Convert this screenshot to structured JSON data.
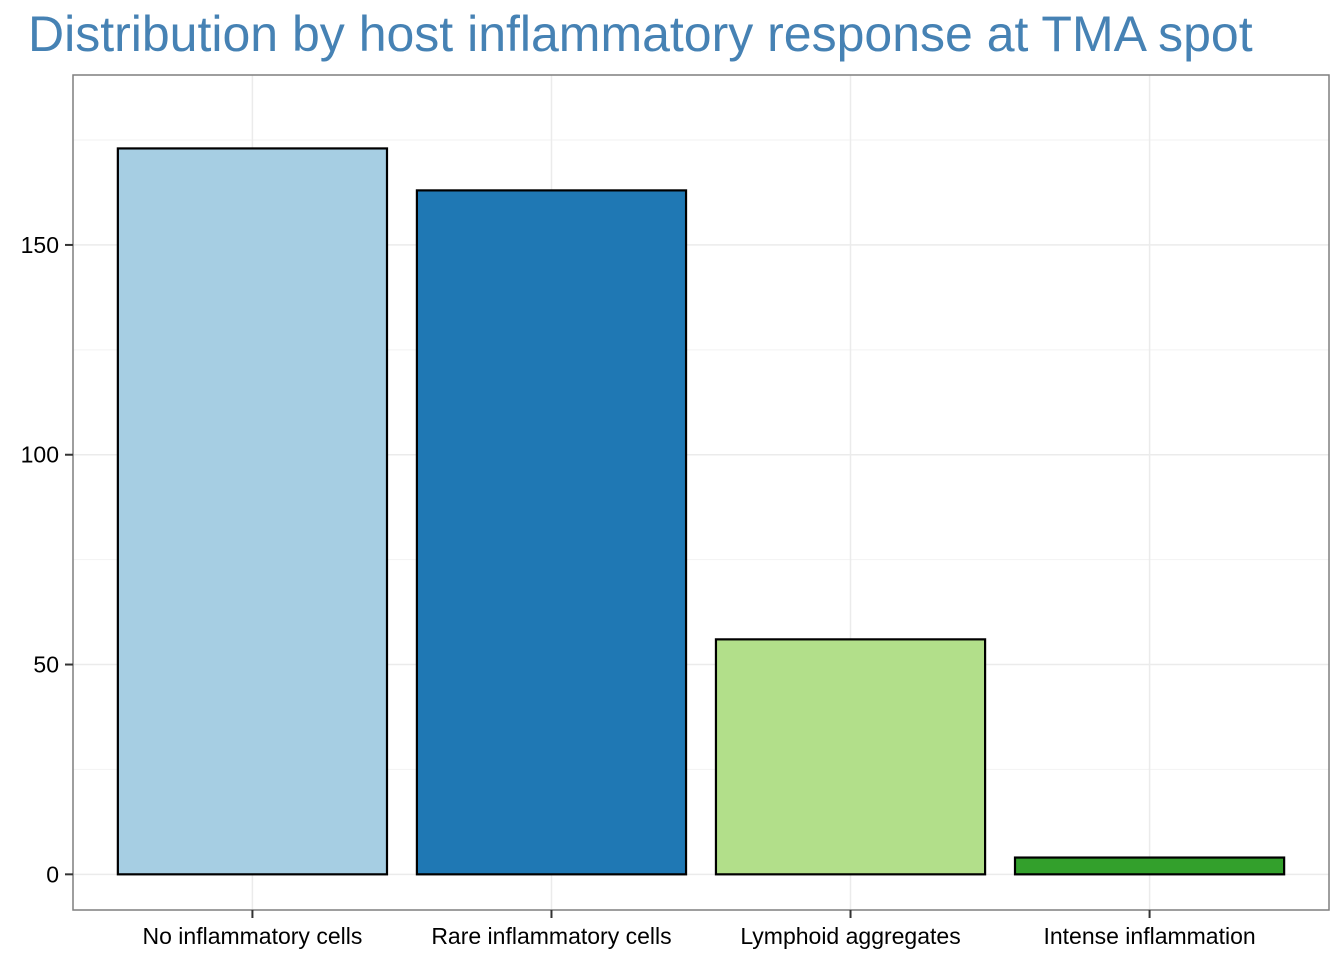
{
  "chart_data": {
    "type": "bar",
    "title": "Distribution by host inflammatory response at TMA spot",
    "xlabel": "",
    "ylabel": "",
    "categories": [
      "No inflammatory cells",
      "Rare inflammatory cells",
      "Lymphoid aggregates",
      "Intense inflammation"
    ],
    "values": [
      173,
      163,
      56,
      4
    ],
    "colors": [
      "#a6cee3",
      "#1f78b4",
      "#b2df8a",
      "#33a02c"
    ],
    "y_ticks": [
      0,
      50,
      100,
      150
    ],
    "ylim": [
      -8.5,
      190.5
    ],
    "grid": true,
    "legend": "none"
  }
}
